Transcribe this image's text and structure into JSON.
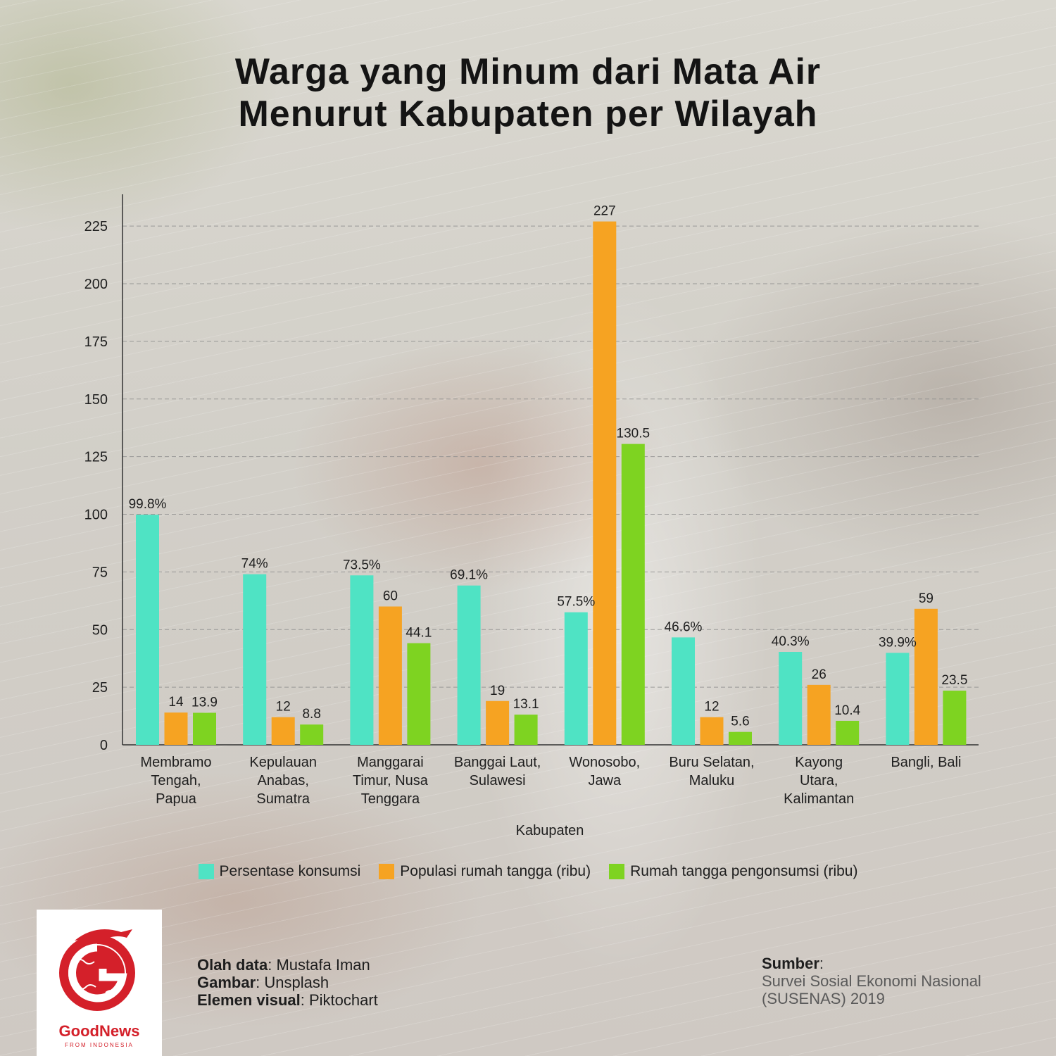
{
  "title_line1": "Warga yang Minum dari Mata Air",
  "title_line2": "Menurut Kabupaten per Wilayah",
  "colors": {
    "persentase": "#4fe3c4",
    "populasi": "#f6a322",
    "pengonsumsi": "#7ed321",
    "brand_red": "#d4202a"
  },
  "chart_data": {
    "type": "bar",
    "xlabel": "Kabupaten",
    "ylabel": "",
    "ylim": [
      0,
      235
    ],
    "yticks": [
      0,
      25,
      50,
      75,
      100,
      125,
      150,
      175,
      200,
      225
    ],
    "grid": "horizontal dashed",
    "legend_position": "bottom",
    "categories": [
      [
        "Membramo",
        "Tengah,",
        "Papua"
      ],
      [
        "Kepulauan",
        "Anabas,",
        "Sumatra"
      ],
      [
        "Manggarai",
        "Timur, Nusa",
        "Tenggara"
      ],
      [
        "Banggai Laut,",
        "Sulawesi"
      ],
      [
        "Wonosobo,",
        "Jawa"
      ],
      [
        "Buru Selatan,",
        "Maluku"
      ],
      [
        "Kayong",
        "Utara,",
        "Kalimantan"
      ],
      [
        "Bangli, Bali"
      ]
    ],
    "series": [
      {
        "name": "Persentase konsumsi",
        "color": "#4fe3c4",
        "values": [
          99.8,
          74,
          73.5,
          69.1,
          57.5,
          46.6,
          40.3,
          39.9
        ],
        "labels": [
          "99.8%",
          "74%",
          "73.5%",
          "69.1%",
          "57.5%",
          "46.6%",
          "40.3%",
          "39.9%"
        ]
      },
      {
        "name": "Populasi rumah tangga (ribu)",
        "color": "#f6a322",
        "values": [
          14,
          12,
          60,
          19,
          227,
          12,
          26,
          59
        ],
        "labels": [
          "14",
          "12",
          "60",
          "19",
          "227",
          "12",
          "26",
          "59"
        ]
      },
      {
        "name": "Rumah tangga pengonsumsi (ribu)",
        "color": "#7ed321",
        "values": [
          13.9,
          8.8,
          44.1,
          13.1,
          130.5,
          5.6,
          10.4,
          23.5
        ],
        "labels": [
          "13.9",
          "8.8",
          "44.1",
          "13.1",
          "130.5",
          "5.6",
          "10.4",
          "23.5"
        ]
      }
    ]
  },
  "logo": {
    "name": "GoodNews",
    "tagline": "FROM INDONESIA"
  },
  "credits": {
    "data_label": "Olah data",
    "data_value": ": Mustafa Iman",
    "image_label": "Gambar",
    "image_value": ": Unsplash",
    "visual_label": "Elemen visual",
    "visual_value": ": Piktochart"
  },
  "source": {
    "label": "Sumber",
    "colon": ":",
    "line1": "Survei Sosial Ekonomi Nasional",
    "line2": "(SUSENAS) 2019"
  }
}
